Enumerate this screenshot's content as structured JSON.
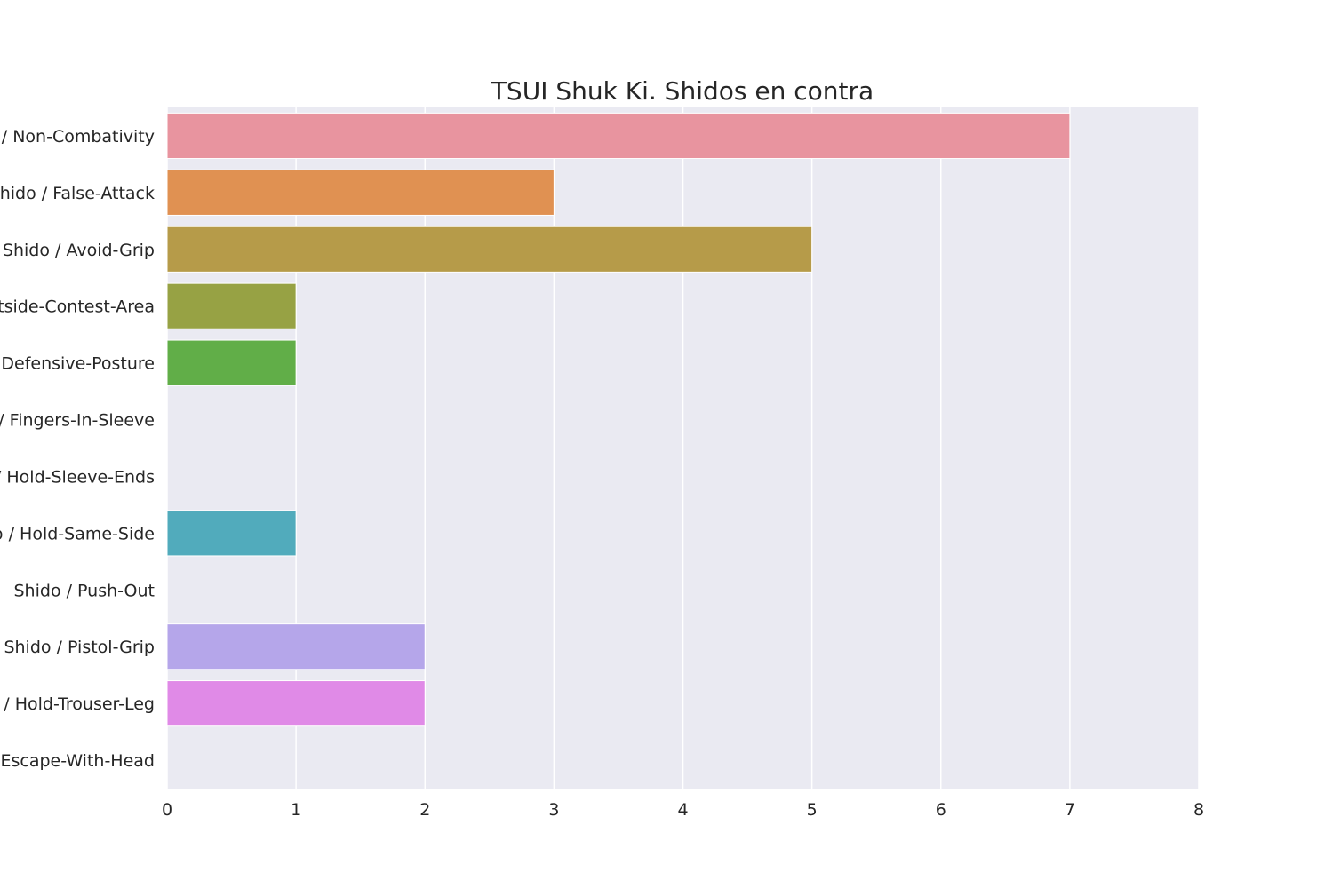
{
  "chart_data": {
    "type": "bar",
    "orientation": "horizontal",
    "title": "TSUI Shuk Ki. Shidos en contra",
    "xlabel": "",
    "ylabel": "",
    "xlim": [
      0,
      8
    ],
    "xticks": [
      "0",
      "1",
      "2",
      "3",
      "4",
      "5",
      "6",
      "7",
      "8"
    ],
    "grid": true,
    "legend": "none",
    "categories": [
      "Shido / Non-Combativity",
      "Shido / False-Attack",
      "Shido / Avoid-Grip",
      "Shido / Outside-Contest-Area",
      "Shido / Defensive-Posture",
      "Shido / Fingers-In-Sleeve",
      "Shido / Hold-Sleeve-Ends",
      "Shido / Hold-Same-Side",
      "Shido / Push-Out",
      "Shido / Pistol-Grip",
      "Shido / Hold-Trouser-Leg",
      "Shido / Escape-With-Head"
    ],
    "values": [
      7,
      3,
      5,
      1,
      1,
      0,
      0,
      1,
      0,
      2,
      2,
      0
    ],
    "colors": [
      "#e8949f",
      "#e09152",
      "#b69b49",
      "#97a244",
      "#61ae48",
      "#4eae8f",
      "#52ab97",
      "#51abbc",
      "#66a7d8",
      "#b5a6ea",
      "#e08ae7",
      "#ea8cc6"
    ],
    "background": "#eaeaf2",
    "gridcolor": "#ffffff"
  }
}
